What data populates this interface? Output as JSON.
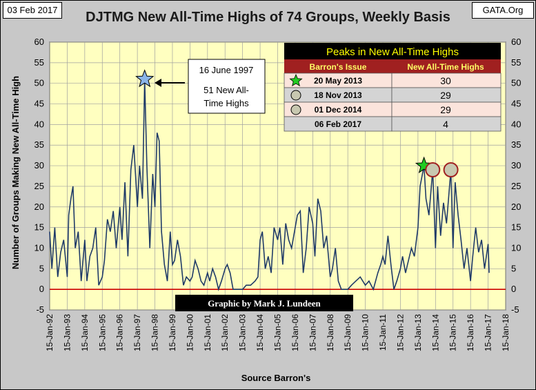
{
  "header": {
    "date": "03 Feb 2017",
    "source_org": "GATA.Org",
    "title": "DJTMG New All-Time Highs of 74 Groups, Weekly Basis"
  },
  "colors": {
    "series": "#1f3a68",
    "plot_bg": "#ffffc0",
    "frame_bg": "#c8c8c8",
    "zero_line": "#cc0000",
    "table_header_bg": "#000000",
    "table_title_color": "#ffff00",
    "table_subheader_bg": "#a02020",
    "table_row_pink": "#fbe4dc",
    "table_row_gray": "#d4d4d4",
    "star_blue": "#8ab4e8",
    "star_green": "#22cc22",
    "circle_fill": "#c8c8b0",
    "circle_stroke": "#a02020"
  },
  "chart_data": {
    "type": "line",
    "title": "DJTMG New All-Time Highs of 74 Groups, Weekly Basis",
    "xlabel": "Source Barron's",
    "ylabel": "Number of Groups Making New All-Time High",
    "ylim": [
      -5,
      60
    ],
    "yticks": [
      -5,
      0,
      5,
      10,
      15,
      20,
      25,
      30,
      35,
      40,
      45,
      50,
      55,
      60
    ],
    "xlim": [
      "1992-01-15",
      "2018-01-15"
    ],
    "xtick_labels": [
      "15-Jan-92",
      "15-Jan-93",
      "15-Jan-94",
      "15-Jan-95",
      "15-Jan-96",
      "15-Jan-97",
      "15-Jan-98",
      "15-Jan-99",
      "15-Jan-00",
      "15-Jan-01",
      "15-Jan-02",
      "15-Jan-03",
      "15-Jan-04",
      "15-Jan-05",
      "15-Jan-06",
      "15-Jan-07",
      "15-Jan-08",
      "15-Jan-09",
      "15-Jan-10",
      "15-Jan-11",
      "15-Jan-12",
      "15-Jan-13",
      "15-Jan-14",
      "15-Jan-15",
      "15-Jan-16",
      "15-Jan-17",
      "15-Jan-18"
    ],
    "grid": true,
    "series": [
      {
        "points": [
          [
            "1992-01-15",
            14
          ],
          [
            "1992-03-01",
            5
          ],
          [
            "1992-05-01",
            15
          ],
          [
            "1992-07-01",
            3
          ],
          [
            "1992-09-01",
            9
          ],
          [
            "1992-11-01",
            12
          ],
          [
            "1993-01-15",
            3
          ],
          [
            "1993-02-15",
            18
          ],
          [
            "1993-04-01",
            22
          ],
          [
            "1993-05-15",
            25
          ],
          [
            "1993-07-01",
            10
          ],
          [
            "1993-09-01",
            14
          ],
          [
            "1993-11-01",
            2
          ],
          [
            "1994-01-15",
            12
          ],
          [
            "1994-03-01",
            2
          ],
          [
            "1994-05-01",
            8
          ],
          [
            "1994-07-01",
            10
          ],
          [
            "1994-09-01",
            15
          ],
          [
            "1994-11-01",
            1
          ],
          [
            "1995-01-15",
            3
          ],
          [
            "1995-03-01",
            7
          ],
          [
            "1995-05-01",
            17
          ],
          [
            "1995-07-01",
            14
          ],
          [
            "1995-09-01",
            19
          ],
          [
            "1995-11-01",
            10
          ],
          [
            "1996-01-15",
            20
          ],
          [
            "1996-03-01",
            12
          ],
          [
            "1996-05-01",
            26
          ],
          [
            "1996-07-01",
            8
          ],
          [
            "1996-09-01",
            29
          ],
          [
            "1996-11-01",
            35
          ],
          [
            "1997-01-15",
            20
          ],
          [
            "1997-03-01",
            30
          ],
          [
            "1997-05-01",
            22
          ],
          [
            "1997-06-16",
            51
          ],
          [
            "1997-08-01",
            30
          ],
          [
            "1997-10-01",
            10
          ],
          [
            "1997-12-01",
            28
          ],
          [
            "1998-01-15",
            20
          ],
          [
            "1998-03-01",
            38
          ],
          [
            "1998-04-15",
            36
          ],
          [
            "1998-06-01",
            14
          ],
          [
            "1998-08-01",
            6
          ],
          [
            "1998-10-01",
            2
          ],
          [
            "1998-12-01",
            14
          ],
          [
            "1999-01-15",
            6
          ],
          [
            "1999-03-01",
            7
          ],
          [
            "1999-05-01",
            12
          ],
          [
            "1999-07-01",
            8
          ],
          [
            "1999-09-01",
            1
          ],
          [
            "1999-11-01",
            3
          ],
          [
            "2000-01-15",
            2
          ],
          [
            "2000-03-01",
            3
          ],
          [
            "2000-05-01",
            7
          ],
          [
            "2000-07-01",
            5
          ],
          [
            "2000-09-01",
            2
          ],
          [
            "2000-11-01",
            1
          ],
          [
            "2001-01-15",
            4
          ],
          [
            "2001-03-01",
            2
          ],
          [
            "2001-05-01",
            5
          ],
          [
            "2001-07-01",
            3
          ],
          [
            "2001-09-01",
            0
          ],
          [
            "2001-11-01",
            2
          ],
          [
            "2002-01-15",
            5
          ],
          [
            "2002-03-01",
            6
          ],
          [
            "2002-05-01",
            4
          ],
          [
            "2002-07-01",
            0
          ],
          [
            "2002-09-01",
            0
          ],
          [
            "2002-11-01",
            0
          ],
          [
            "2003-01-15",
            0
          ],
          [
            "2003-04-01",
            1
          ],
          [
            "2003-07-01",
            1
          ],
          [
            "2003-10-01",
            2
          ],
          [
            "2003-12-01",
            3
          ],
          [
            "2004-01-15",
            12
          ],
          [
            "2004-03-01",
            14
          ],
          [
            "2004-05-01",
            5
          ],
          [
            "2004-07-01",
            8
          ],
          [
            "2004-09-01",
            4
          ],
          [
            "2004-11-01",
            15
          ],
          [
            "2005-01-15",
            12
          ],
          [
            "2005-03-01",
            15
          ],
          [
            "2005-05-01",
            6
          ],
          [
            "2005-07-01",
            16
          ],
          [
            "2005-09-01",
            12
          ],
          [
            "2005-11-01",
            10
          ],
          [
            "2006-01-15",
            15
          ],
          [
            "2006-03-01",
            18
          ],
          [
            "2006-05-01",
            19
          ],
          [
            "2006-07-01",
            4
          ],
          [
            "2006-09-01",
            10
          ],
          [
            "2006-11-01",
            20
          ],
          [
            "2007-01-15",
            16
          ],
          [
            "2007-03-01",
            8
          ],
          [
            "2007-05-01",
            22
          ],
          [
            "2007-07-01",
            19
          ],
          [
            "2007-09-01",
            10
          ],
          [
            "2007-11-01",
            13
          ],
          [
            "2008-01-15",
            3
          ],
          [
            "2008-03-01",
            5
          ],
          [
            "2008-05-01",
            10
          ],
          [
            "2008-07-01",
            2
          ],
          [
            "2008-09-01",
            0
          ],
          [
            "2008-11-01",
            0
          ],
          [
            "2009-01-15",
            0
          ],
          [
            "2009-04-01",
            1
          ],
          [
            "2009-07-01",
            2
          ],
          [
            "2009-10-01",
            3
          ],
          [
            "2010-01-15",
            1
          ],
          [
            "2010-04-01",
            2
          ],
          [
            "2010-07-01",
            0
          ],
          [
            "2010-10-01",
            4
          ],
          [
            "2010-12-01",
            6
          ],
          [
            "2011-01-15",
            8
          ],
          [
            "2011-03-01",
            6
          ],
          [
            "2011-05-01",
            13
          ],
          [
            "2011-07-01",
            6
          ],
          [
            "2011-09-01",
            0
          ],
          [
            "2011-11-01",
            2
          ],
          [
            "2012-01-15",
            5
          ],
          [
            "2012-03-01",
            8
          ],
          [
            "2012-05-01",
            4
          ],
          [
            "2012-07-01",
            7
          ],
          [
            "2012-09-01",
            10
          ],
          [
            "2012-11-01",
            8
          ],
          [
            "2013-01-15",
            15
          ],
          [
            "2013-03-01",
            25
          ],
          [
            "2013-05-20",
            30
          ],
          [
            "2013-07-01",
            22
          ],
          [
            "2013-09-01",
            18
          ],
          [
            "2013-11-18",
            29
          ],
          [
            "2014-01-15",
            10
          ],
          [
            "2014-03-01",
            25
          ],
          [
            "2014-05-01",
            13
          ],
          [
            "2014-07-01",
            21
          ],
          [
            "2014-09-01",
            16
          ],
          [
            "2014-12-01",
            29
          ],
          [
            "2015-01-15",
            10
          ],
          [
            "2015-03-01",
            26
          ],
          [
            "2015-05-01",
            18
          ],
          [
            "2015-07-01",
            12
          ],
          [
            "2015-09-01",
            5
          ],
          [
            "2015-11-01",
            10
          ],
          [
            "2016-01-15",
            2
          ],
          [
            "2016-03-01",
            8
          ],
          [
            "2016-05-01",
            15
          ],
          [
            "2016-07-01",
            9
          ],
          [
            "2016-09-01",
            12
          ],
          [
            "2016-11-01",
            5
          ],
          [
            "2017-01-15",
            11
          ],
          [
            "2017-02-06",
            4
          ]
        ]
      }
    ],
    "annotations": [
      {
        "date": "1997-06-16",
        "value": 51,
        "marker": "blue-star",
        "lines": [
          "16 June 1997",
          "51 New All-",
          "Time Highs"
        ]
      },
      {
        "date": "2013-05-20",
        "value": 30,
        "marker": "green-star"
      },
      {
        "date": "2013-11-18",
        "value": 29,
        "marker": "circle"
      },
      {
        "date": "2014-12-01",
        "value": 29,
        "marker": "circle"
      }
    ],
    "credit": "Graphic by Mark J. Lundeen"
  },
  "peaks_table": {
    "title": "Peaks in New All-Time Highs",
    "col1_header": "Barron's Issue",
    "col2_header": "New All-Time Highs",
    "rows": [
      {
        "marker": "green-star",
        "issue": "20 May 2013",
        "value": "30"
      },
      {
        "marker": "circle",
        "issue": "18 Nov 2013",
        "value": "29"
      },
      {
        "marker": "circle",
        "issue": "01 Dec 2014",
        "value": "29"
      },
      {
        "marker": "none",
        "issue": "06 Feb 2017",
        "value": "4"
      }
    ]
  }
}
